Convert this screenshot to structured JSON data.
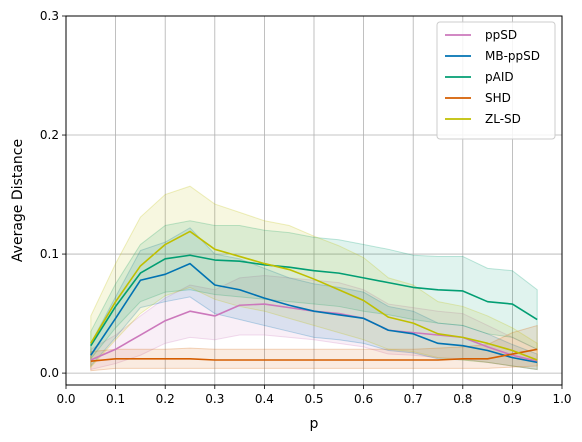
{
  "chart_data": {
    "type": "line",
    "title": "",
    "xlabel": "p",
    "ylabel": "Average Distance",
    "xlim": [
      0.0,
      1.0
    ],
    "ylim": [
      -0.01,
      0.3
    ],
    "xticks": [
      "0.0",
      "0.1",
      "0.2",
      "0.3",
      "0.4",
      "0.5",
      "0.6",
      "0.7",
      "0.8",
      "0.9",
      "1.0"
    ],
    "xtick_values": [
      0.0,
      0.1,
      0.2,
      0.3,
      0.4,
      0.5,
      0.6,
      0.7,
      0.8,
      0.9,
      1.0
    ],
    "yticks": [
      "0.0",
      "0.1",
      "0.2",
      "0.3"
    ],
    "ytick_values": [
      0.0,
      0.1,
      0.2,
      0.3
    ],
    "grid": true,
    "legend_position": "top-right",
    "x": [
      0.05,
      0.1,
      0.15,
      0.2,
      0.25,
      0.3,
      0.35,
      0.4,
      0.45,
      0.5,
      0.55,
      0.6,
      0.65,
      0.7,
      0.75,
      0.8,
      0.85,
      0.9,
      0.95
    ],
    "series": [
      {
        "name": "ppSD",
        "color": "#cc78bc",
        "values": [
          0.011,
          0.02,
          0.032,
          0.044,
          0.052,
          0.048,
          0.057,
          0.058,
          0.055,
          0.052,
          0.05,
          0.046,
          0.036,
          0.034,
          0.032,
          0.03,
          0.022,
          0.015,
          0.01
        ],
        "lower": [
          0.003,
          0.008,
          0.015,
          0.025,
          0.03,
          0.028,
          0.032,
          0.032,
          0.03,
          0.028,
          0.025,
          0.022,
          0.016,
          0.015,
          0.013,
          0.012,
          0.009,
          0.006,
          0.003
        ],
        "upper": [
          0.02,
          0.032,
          0.048,
          0.063,
          0.074,
          0.07,
          0.08,
          0.082,
          0.08,
          0.078,
          0.076,
          0.07,
          0.058,
          0.055,
          0.052,
          0.05,
          0.04,
          0.03,
          0.02
        ]
      },
      {
        "name": "MB-ppSD",
        "color": "#0173b2",
        "values": [
          0.015,
          0.046,
          0.078,
          0.083,
          0.092,
          0.074,
          0.07,
          0.063,
          0.057,
          0.052,
          0.049,
          0.046,
          0.036,
          0.033,
          0.025,
          0.023,
          0.019,
          0.013,
          0.009
        ],
        "lower": [
          0.006,
          0.03,
          0.055,
          0.06,
          0.064,
          0.05,
          0.045,
          0.04,
          0.035,
          0.03,
          0.028,
          0.025,
          0.019,
          0.017,
          0.012,
          0.011,
          0.009,
          0.006,
          0.003
        ],
        "upper": [
          0.025,
          0.064,
          0.103,
          0.11,
          0.122,
          0.1,
          0.096,
          0.088,
          0.08,
          0.075,
          0.072,
          0.068,
          0.056,
          0.052,
          0.042,
          0.04,
          0.033,
          0.024,
          0.016
        ]
      },
      {
        "name": "pAID",
        "color": "#029e73",
        "values": [
          0.023,
          0.056,
          0.084,
          0.096,
          0.099,
          0.095,
          0.094,
          0.091,
          0.089,
          0.086,
          0.084,
          0.08,
          0.076,
          0.072,
          0.07,
          0.069,
          0.06,
          0.058,
          0.045
        ],
        "lower": [
          0.012,
          0.038,
          0.06,
          0.068,
          0.07,
          0.066,
          0.064,
          0.062,
          0.06,
          0.058,
          0.056,
          0.052,
          0.049,
          0.045,
          0.042,
          0.04,
          0.033,
          0.03,
          0.02
        ],
        "upper": [
          0.035,
          0.075,
          0.108,
          0.124,
          0.128,
          0.124,
          0.124,
          0.12,
          0.118,
          0.114,
          0.112,
          0.108,
          0.104,
          0.099,
          0.098,
          0.098,
          0.088,
          0.086,
          0.07
        ]
      },
      {
        "name": "SHD",
        "color": "#d55e00",
        "values": [
          0.01,
          0.012,
          0.012,
          0.012,
          0.012,
          0.011,
          0.011,
          0.011,
          0.011,
          0.011,
          0.011,
          0.011,
          0.011,
          0.011,
          0.011,
          0.012,
          0.012,
          0.016,
          0.02
        ],
        "lower": [
          0.002,
          0.004,
          0.004,
          0.004,
          0.004,
          0.004,
          0.004,
          0.004,
          0.004,
          0.004,
          0.004,
          0.004,
          0.004,
          0.004,
          0.004,
          0.004,
          0.004,
          0.005,
          0.006
        ],
        "upper": [
          0.018,
          0.02,
          0.02,
          0.02,
          0.021,
          0.02,
          0.02,
          0.02,
          0.02,
          0.02,
          0.02,
          0.02,
          0.02,
          0.02,
          0.021,
          0.022,
          0.024,
          0.034,
          0.04
        ]
      },
      {
        "name": "ZL-SD",
        "color": "#bfbf00",
        "values": [
          0.025,
          0.06,
          0.09,
          0.108,
          0.119,
          0.104,
          0.098,
          0.092,
          0.087,
          0.079,
          0.07,
          0.061,
          0.047,
          0.042,
          0.033,
          0.03,
          0.025,
          0.019,
          0.011
        ],
        "lower": [
          0.005,
          0.028,
          0.05,
          0.065,
          0.072,
          0.062,
          0.056,
          0.052,
          0.046,
          0.04,
          0.034,
          0.028,
          0.02,
          0.018,
          0.013,
          0.011,
          0.009,
          0.006,
          0.003
        ],
        "upper": [
          0.048,
          0.092,
          0.131,
          0.15,
          0.157,
          0.142,
          0.135,
          0.128,
          0.124,
          0.115,
          0.107,
          0.097,
          0.08,
          0.074,
          0.06,
          0.056,
          0.048,
          0.038,
          0.025
        ]
      }
    ]
  }
}
